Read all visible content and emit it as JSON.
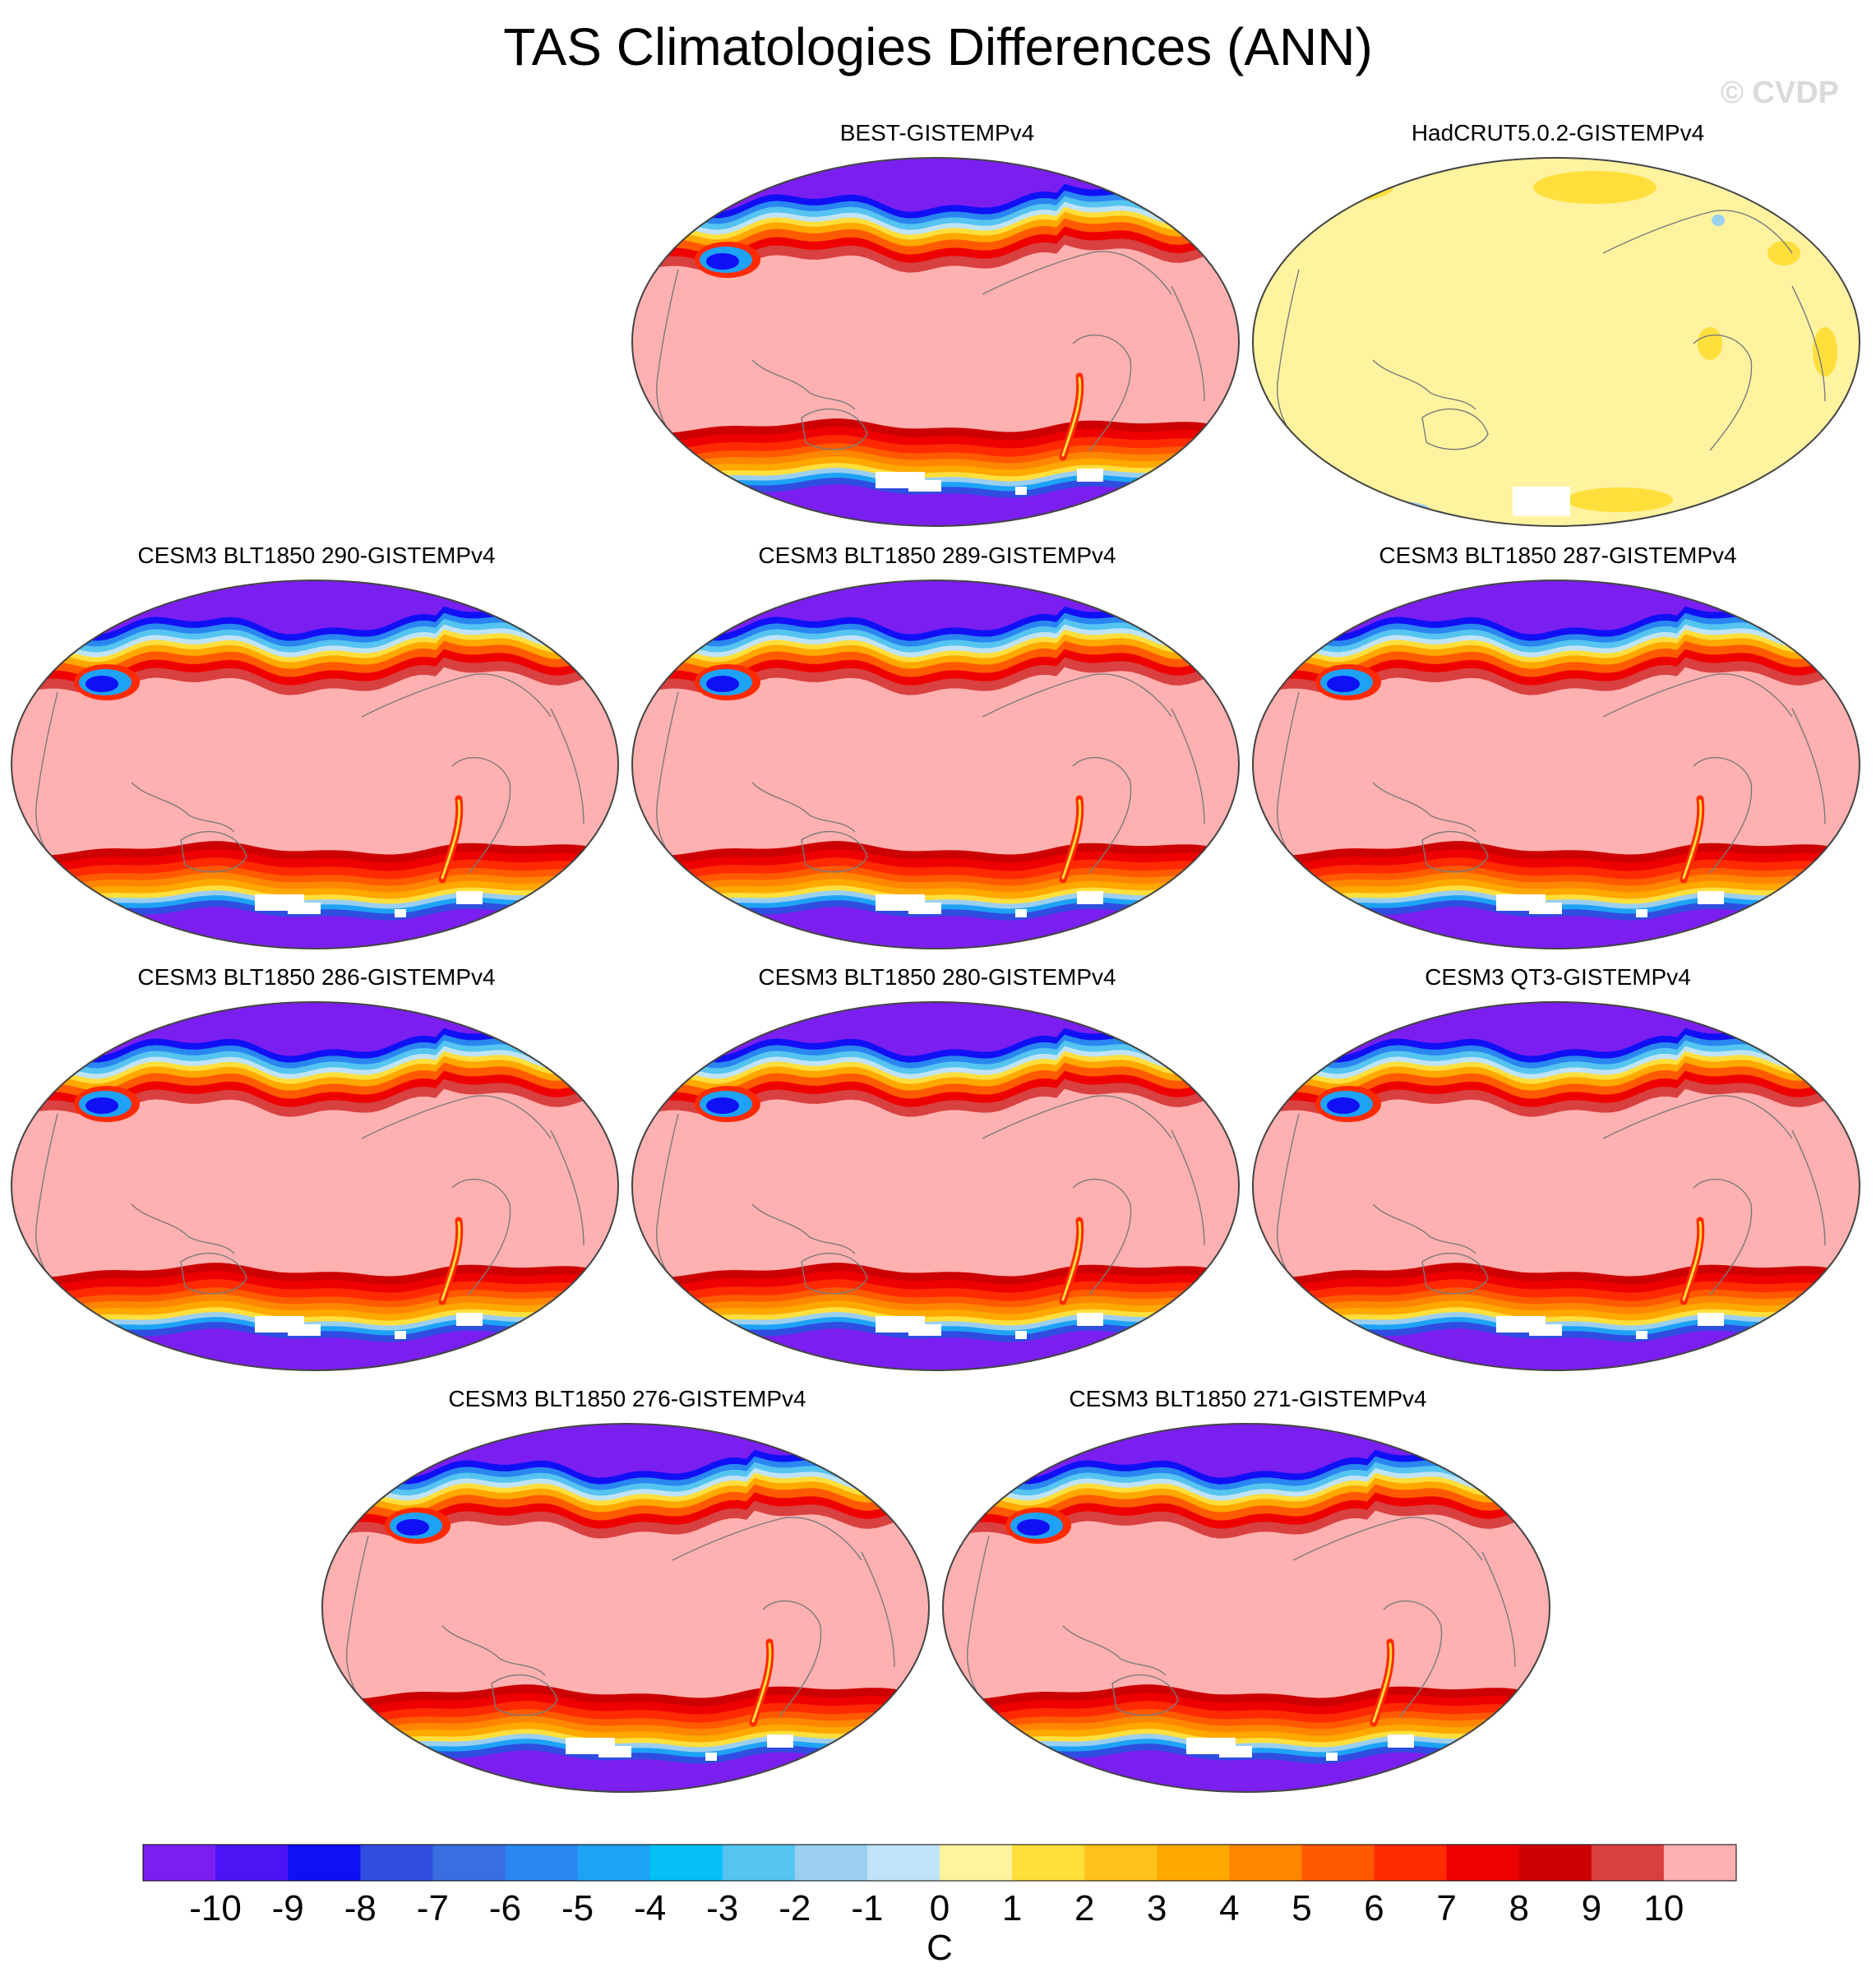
{
  "title": "TAS Climatologies Differences (ANN)",
  "watermark": "© CVDP",
  "chart_data": {
    "type": "heatmap",
    "projection": "robinson",
    "central_longitude": 180,
    "variable": "TAS",
    "season": "ANN",
    "units": "C",
    "colorbar": {
      "levels": [
        -10,
        -9,
        -8,
        -7,
        -6,
        -5,
        -4,
        -3,
        -2,
        -1,
        0,
        1,
        2,
        3,
        4,
        5,
        6,
        7,
        8,
        9,
        10
      ],
      "tick_labels": [
        "-10",
        "-9",
        "-8",
        "-7",
        "-6",
        "-5",
        "-4",
        "-3",
        "-2",
        "-1",
        "0",
        "1",
        "2",
        "3",
        "4",
        "5",
        "6",
        "7",
        "8",
        "9",
        "10"
      ],
      "colors": [
        "#7a1ff0",
        "#4a14f5",
        "#1010f5",
        "#2f4de0",
        "#3a6ee0",
        "#2a86f0",
        "#1ea2f5",
        "#05bff7",
        "#55c4f0",
        "#9bcff0",
        "#bfe3f7",
        "#fff3a0",
        "#ffdf3c",
        "#ffc21c",
        "#ffa800",
        "#ff8600",
        "#ff5a00",
        "#ff2a00",
        "#ee0000",
        "#cc0000",
        "#d94040",
        "#ffb0b0"
      ],
      "label": "C",
      "position": "bottom"
    },
    "panels": [
      {
        "title": "BEST-GISTEMPv4",
        "pattern": "model"
      },
      {
        "title": "HadCRUT5.0.2-GISTEMPv4",
        "pattern": "obs"
      },
      {
        "title": "CESM3 BLT1850 290-GISTEMPv4",
        "pattern": "model"
      },
      {
        "title": "CESM3 BLT1850 289-GISTEMPv4",
        "pattern": "model"
      },
      {
        "title": "CESM3 BLT1850 287-GISTEMPv4",
        "pattern": "model"
      },
      {
        "title": "CESM3 BLT1850 286-GISTEMPv4",
        "pattern": "model"
      },
      {
        "title": "CESM3 BLT1850 280-GISTEMPv4",
        "pattern": "model"
      },
      {
        "title": "CESM3 QT3-GISTEMPv4",
        "pattern": "model"
      },
      {
        "title": "CESM3 BLT1850 276-GISTEMPv4",
        "pattern": "model"
      },
      {
        "title": "CESM3 BLT1850 271-GISTEMPv4",
        "pattern": "model"
      }
    ]
  }
}
